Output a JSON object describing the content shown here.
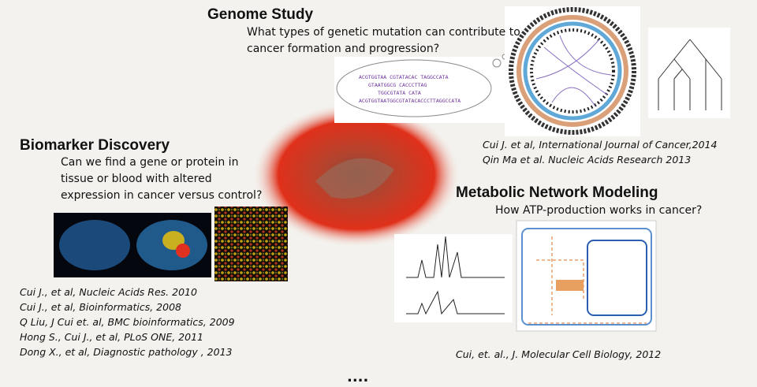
{
  "genome": {
    "title": "Genome Study",
    "question_lines": [
      "What types of genetic mutation can contribute to",
      "cancer formation and progression?"
    ],
    "alignment_lines": [
      "ACGTGGTAA   CGTATACAC   TAGGCCATA",
      "GTAATGGCG   CACCCTTAG",
      "TGGCGTATA   CATA",
      "ACGTGGTAATGGCGTATACACCCTTAGGCCATA"
    ],
    "references": [
      "Cui  J. et al,  International Journal of Cancer,2014",
      "Qin Ma et al. Nucleic Acids Research 2013"
    ]
  },
  "biomarker": {
    "title": "Biomarker Discovery",
    "question_lines": [
      "Can we find a gene or protein in",
      "tissue or blood with altered",
      "expression in cancer versus control?"
    ],
    "references": [
      "Cui J., et al, Nucleic Acids Res. 2010",
      "Cui  J., et al, Bioinformatics, 2008",
      "Q Liu, J Cui et. al, BMC bioinformatics, 2009",
      "Hong S., Cui J., et al, PLoS ONE, 2011",
      "Dong X., et al, Diagnostic pathology , 2013"
    ]
  },
  "metabolic": {
    "title": "Metabolic Network Modeling",
    "question_lines": [
      "How ATP-production works in cancer?"
    ],
    "references": [
      "Cui, et. al.,  J. Molecular Cell Biology, 2012"
    ]
  },
  "footer": "...."
}
